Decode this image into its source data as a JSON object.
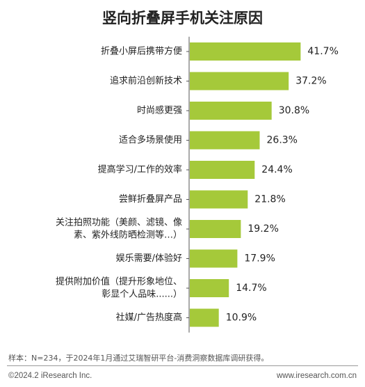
{
  "chart_data": {
    "type": "bar",
    "orientation": "horizontal",
    "title": "竖向折叠屏手机关注原因",
    "categories": [
      [
        "折叠小屏后携带方便"
      ],
      [
        "追求前沿创新技术"
      ],
      [
        "时尚感更强"
      ],
      [
        "适合多场景使用"
      ],
      [
        "提高学习/工作的效率"
      ],
      [
        "尝鲜折叠屏产品"
      ],
      [
        "关注拍照功能（美颜、滤镜、像",
        "素、紫外线防晒检测等…）"
      ],
      [
        "娱乐需要/体验好"
      ],
      [
        "提供附加价值（提升形象地位、",
        "彰显个人品味......）"
      ],
      [
        "社媒/广告热度高"
      ]
    ],
    "values": [
      41.7,
      37.2,
      30.8,
      26.3,
      24.4,
      21.8,
      19.2,
      17.9,
      14.7,
      10.9
    ],
    "value_labels": [
      "41.7%",
      "37.2%",
      "30.8%",
      "26.3%",
      "24.4%",
      "21.8%",
      "19.2%",
      "17.9%",
      "14.7%",
      "10.9%"
    ],
    "xlabel": "",
    "ylabel": "",
    "xlim": [
      0,
      45
    ],
    "grid": false,
    "bar_color": "#a5c93a"
  },
  "footer": {
    "note": "样本：N=234，于2024年1月通过艾瑞智研平台-消费洞察数据库调研获得。",
    "copyright": "©2024.2 iResearch Inc.",
    "site": "www.iresearch.com.cn"
  }
}
